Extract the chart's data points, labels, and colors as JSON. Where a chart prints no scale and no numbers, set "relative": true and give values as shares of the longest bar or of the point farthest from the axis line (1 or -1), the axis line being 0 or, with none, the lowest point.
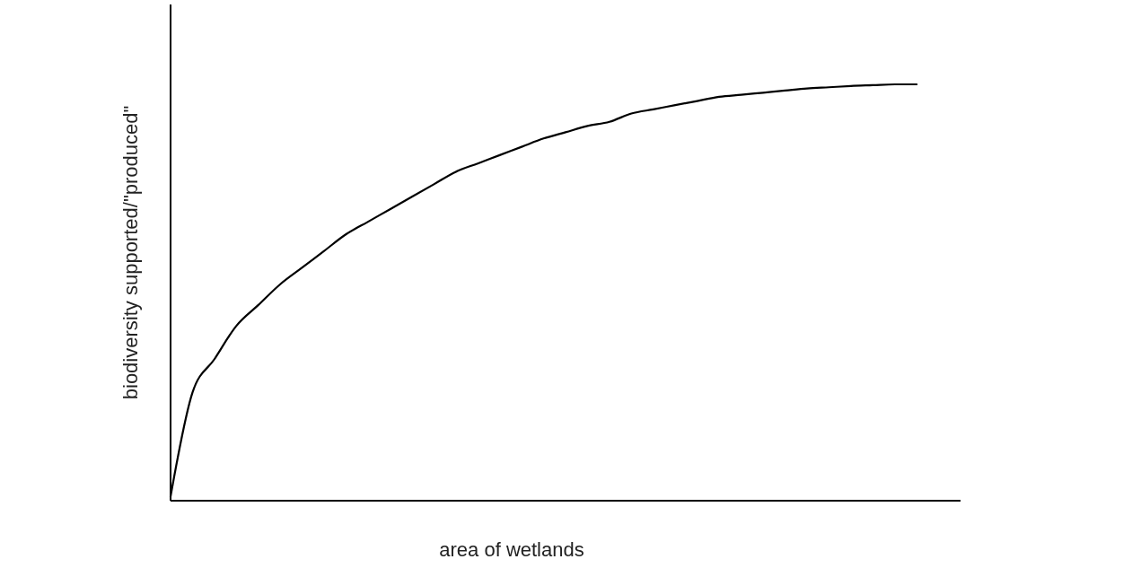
{
  "chart_data": {
    "type": "line",
    "relative": true,
    "xlabel": "area of wetlands",
    "ylabel": "biodiversity supported/\"produced\"",
    "categories": [
      null,
      null,
      null,
      null,
      null,
      null,
      null,
      null,
      null,
      null,
      null,
      null,
      null,
      null,
      null,
      null,
      null,
      null,
      null,
      null,
      null,
      null,
      null,
      null,
      null,
      null,
      null,
      null,
      null,
      null,
      null,
      null,
      null,
      null,
      null,
      null,
      null
    ],
    "series": [
      {
        "color": "#000000",
        "values": [
          0.01,
          0.26,
          0.34,
          0.42,
          0.47,
          0.52,
          0.56,
          0.6,
          0.64,
          0.67,
          0.7,
          0.73,
          0.76,
          0.79,
          0.81,
          0.83,
          0.85,
          0.87,
          0.885,
          0.9,
          0.91,
          0.93,
          0.94,
          0.95,
          0.96,
          0.97,
          0.975,
          0.98,
          0.985,
          0.99,
          0.993,
          0.996,
          0.998,
          1,
          1,
          null,
          null
        ]
      }
    ]
  }
}
